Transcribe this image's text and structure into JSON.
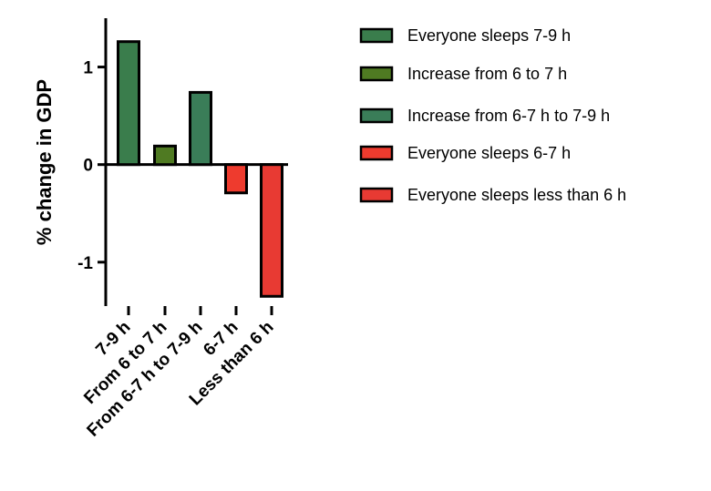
{
  "chart_data": {
    "type": "bar",
    "title": "",
    "xlabel": "",
    "ylabel": "% change in GDP",
    "ylim": [
      -1.45,
      1.5
    ],
    "yticks": [
      -1,
      0,
      1
    ],
    "ytick_labels": [
      "-1",
      "0",
      "1"
    ],
    "categories": [
      "7-9 h",
      "From 6 to 7 h",
      "From 6-7 h to 7-9 h",
      "6-7 h",
      "Less than 6 h"
    ],
    "values": [
      1.26,
      0.19,
      0.74,
      -0.29,
      -1.35
    ],
    "colors": [
      "#3a7d4c",
      "#4f7a22",
      "#3a7d58",
      "#ee3b2e",
      "#e83a33"
    ],
    "grid": false,
    "legend": {
      "placement": "right",
      "entries": [
        {
          "label": "Everyone sleeps 7-9 h",
          "color": "#3a7d4c"
        },
        {
          "label": "Increase from 6 to 7 h",
          "color": "#4f7a22"
        },
        {
          "label": "Increase from 6-7 h to 7-9 h",
          "color": "#3a7d58"
        },
        {
          "label": "Everyone sleeps 6-7 h",
          "color": "#ee3b2e"
        },
        {
          "label": "Everyone sleeps less than 6 h",
          "color": "#e83a33"
        }
      ]
    }
  }
}
